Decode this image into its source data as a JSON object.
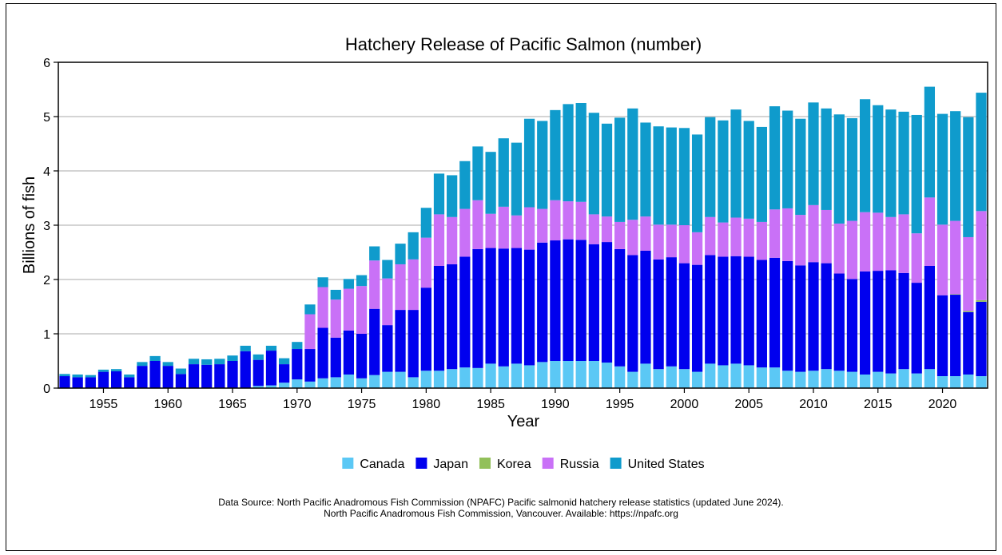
{
  "chart_data": {
    "type": "bar",
    "stacked": true,
    "title": "Hatchery Release of Pacific Salmon (number)",
    "xlabel": "Year",
    "ylabel": "Billions of fish",
    "ylim": [
      0,
      6
    ],
    "yticks": [
      0,
      1,
      2,
      3,
      4,
      5,
      6
    ],
    "xticks": [
      1955,
      1960,
      1965,
      1970,
      1975,
      1980,
      1985,
      1990,
      1995,
      2000,
      2005,
      2010,
      2015,
      2020
    ],
    "grid": "horizontal",
    "legend_position": "bottom",
    "x": [
      1952,
      1953,
      1954,
      1955,
      1956,
      1957,
      1958,
      1959,
      1960,
      1961,
      1962,
      1963,
      1964,
      1965,
      1966,
      1967,
      1968,
      1969,
      1970,
      1971,
      1972,
      1973,
      1974,
      1975,
      1976,
      1977,
      1978,
      1979,
      1980,
      1981,
      1982,
      1983,
      1984,
      1985,
      1986,
      1987,
      1988,
      1989,
      1990,
      1991,
      1992,
      1993,
      1994,
      1995,
      1996,
      1997,
      1998,
      1999,
      2000,
      2001,
      2002,
      2003,
      2004,
      2005,
      2006,
      2007,
      2008,
      2009,
      2010,
      2011,
      2012,
      2013,
      2014,
      2015,
      2016,
      2017,
      2018,
      2019,
      2020,
      2021,
      2022,
      2023
    ],
    "series": [
      {
        "name": "Canada",
        "color": "#5bc8f5",
        "values": [
          0,
          0,
          0,
          0,
          0,
          0,
          0,
          0,
          0,
          0,
          0,
          0,
          0,
          0,
          0,
          0.04,
          0.05,
          0.1,
          0.16,
          0.12,
          0.18,
          0.2,
          0.25,
          0.18,
          0.24,
          0.3,
          0.3,
          0.2,
          0.32,
          0.32,
          0.35,
          0.38,
          0.37,
          0.45,
          0.4,
          0.45,
          0.42,
          0.48,
          0.5,
          0.5,
          0.5,
          0.5,
          0.47,
          0.4,
          0.3,
          0.45,
          0.35,
          0.4,
          0.35,
          0.3,
          0.45,
          0.42,
          0.45,
          0.42,
          0.38,
          0.38,
          0.32,
          0.3,
          0.32,
          0.35,
          0.32,
          0.3,
          0.25,
          0.3,
          0.27,
          0.35,
          0.27,
          0.35,
          0.22,
          0.22,
          0.25,
          0.22
        ]
      },
      {
        "name": "Japan",
        "color": "#0000ee",
        "values": [
          0.22,
          0.2,
          0.2,
          0.3,
          0.31,
          0.2,
          0.41,
          0.5,
          0.41,
          0.26,
          0.44,
          0.43,
          0.44,
          0.5,
          0.68,
          0.48,
          0.64,
          0.34,
          0.56,
          0.6,
          0.93,
          0.73,
          0.81,
          0.82,
          1.22,
          0.86,
          1.14,
          1.24,
          1.53,
          1.93,
          1.93,
          2.04,
          2.19,
          2.13,
          2.17,
          2.13,
          2.13,
          2.2,
          2.22,
          2.24,
          2.23,
          2.15,
          2.22,
          2.16,
          2.15,
          2.08,
          2.02,
          2.01,
          1.95,
          1.97,
          2.0,
          2.0,
          1.98,
          2.0,
          1.98,
          2.02,
          2.02,
          1.96,
          2.0,
          1.95,
          1.79,
          1.71,
          1.9,
          1.86,
          1.9,
          1.77,
          1.67,
          1.9,
          1.49,
          1.5,
          1.15,
          1.37
        ]
      },
      {
        "name": "Korea",
        "color": "#92c05a",
        "values": [
          0,
          0,
          0,
          0,
          0,
          0,
          0,
          0,
          0,
          0,
          0,
          0,
          0,
          0,
          0,
          0,
          0,
          0,
          0,
          0,
          0,
          0,
          0,
          0,
          0,
          0,
          0,
          0,
          0,
          0,
          0,
          0,
          0,
          0,
          0,
          0,
          0,
          0,
          0,
          0,
          0,
          0,
          0,
          0,
          0,
          0,
          0,
          0,
          0,
          0,
          0,
          0,
          0,
          0,
          0,
          0,
          0,
          0,
          0,
          0,
          0,
          0,
          0,
          0,
          0,
          0,
          0,
          0,
          0,
          0.01,
          0.02,
          0.03
        ]
      },
      {
        "name": "Russia",
        "color": "#c971f7",
        "values": [
          0,
          0,
          0,
          0,
          0,
          0,
          0,
          0,
          0,
          0,
          0,
          0,
          0,
          0,
          0,
          0,
          0,
          0,
          0,
          0.64,
          0.75,
          0.7,
          0.77,
          0.88,
          0.89,
          0.86,
          0.84,
          0.93,
          0.92,
          0.95,
          0.87,
          0.88,
          0.9,
          0.63,
          0.77,
          0.6,
          0.78,
          0.62,
          0.74,
          0.7,
          0.7,
          0.55,
          0.47,
          0.5,
          0.65,
          0.63,
          0.64,
          0.6,
          0.7,
          0.6,
          0.7,
          0.63,
          0.71,
          0.7,
          0.7,
          0.89,
          0.97,
          0.93,
          1.05,
          0.98,
          0.92,
          1.07,
          1.09,
          1.07,
          0.98,
          1.08,
          0.91,
          1.26,
          1.3,
          1.35,
          1.36,
          1.64
        ]
      },
      {
        "name": "United States",
        "color": "#0f9bcc",
        "values": [
          0.04,
          0.05,
          0.04,
          0.04,
          0.04,
          0.05,
          0.07,
          0.09,
          0.07,
          0.1,
          0.1,
          0.1,
          0.1,
          0.1,
          0.1,
          0.1,
          0.09,
          0.11,
          0.13,
          0.18,
          0.18,
          0.18,
          0.18,
          0.2,
          0.26,
          0.34,
          0.38,
          0.5,
          0.55,
          0.75,
          0.77,
          0.88,
          0.99,
          1.14,
          1.26,
          1.34,
          1.63,
          1.62,
          1.66,
          1.79,
          1.82,
          1.87,
          1.71,
          1.92,
          2.05,
          1.73,
          1.81,
          1.79,
          1.79,
          1.8,
          1.84,
          1.88,
          1.99,
          1.8,
          1.75,
          1.9,
          1.8,
          1.77,
          1.89,
          1.87,
          2.01,
          1.89,
          2.08,
          1.98,
          1.98,
          1.89,
          2.18,
          2.04,
          2.04,
          2.02,
          2.21,
          2.18
        ]
      }
    ]
  },
  "source_note": {
    "line1": "Data Source: North Pacific Anadromous Fish Commission (NPAFC) Pacific salmonid hatchery release statistics (updated June 2024).",
    "line2": "North Pacific Anadromous Fish Commission, Vancouver. Available: https://npafc.org"
  }
}
